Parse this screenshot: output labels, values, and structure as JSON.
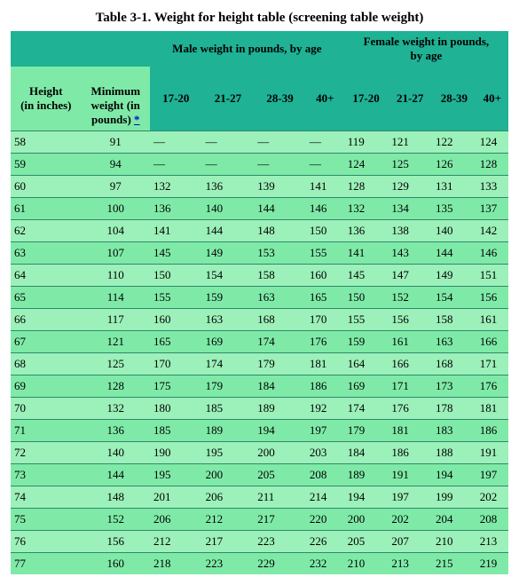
{
  "title": "Table 3-1. Weight for height table (screening table weight)",
  "headers": {
    "male_group": "Male weight in pounds, by age",
    "female_group": "Female weight in pounds,\nby age",
    "height": "Height\n(in inches)",
    "minweight_pre": "Minimum\nweight (in\npounds) ",
    "minweight_link": "*",
    "ages": [
      "17-20",
      "21-27",
      "28-39",
      "40+",
      "17-20",
      "21-27",
      "28-39",
      "40+"
    ]
  },
  "rows": [
    {
      "h": "58",
      "m": "91",
      "v": [
        "—",
        "—",
        "—",
        "—",
        "119",
        "121",
        "122",
        "124"
      ]
    },
    {
      "h": "59",
      "m": "94",
      "v": [
        "—",
        "—",
        "—",
        "—",
        "124",
        "125",
        "126",
        "128"
      ]
    },
    {
      "h": "60",
      "m": "97",
      "v": [
        "132",
        "136",
        "139",
        "141",
        "128",
        "129",
        "131",
        "133"
      ]
    },
    {
      "h": "61",
      "m": "100",
      "v": [
        "136",
        "140",
        "144",
        "146",
        "132",
        "134",
        "135",
        "137"
      ]
    },
    {
      "h": "62",
      "m": "104",
      "v": [
        "141",
        "144",
        "148",
        "150",
        "136",
        "138",
        "140",
        "142"
      ]
    },
    {
      "h": "63",
      "m": "107",
      "v": [
        "145",
        "149",
        "153",
        "155",
        "141",
        "143",
        "144",
        "146"
      ]
    },
    {
      "h": "64",
      "m": "110",
      "v": [
        "150",
        "154",
        "158",
        "160",
        "145",
        "147",
        "149",
        "151"
      ]
    },
    {
      "h": "65",
      "m": "114",
      "v": [
        "155",
        "159",
        "163",
        "165",
        "150",
        "152",
        "154",
        "156"
      ]
    },
    {
      "h": "66",
      "m": "117",
      "v": [
        "160",
        "163",
        "168",
        "170",
        "155",
        "156",
        "158",
        "161"
      ]
    },
    {
      "h": "67",
      "m": "121",
      "v": [
        "165",
        "169",
        "174",
        "176",
        "159",
        "161",
        "163",
        "166"
      ]
    },
    {
      "h": "68",
      "m": "125",
      "v": [
        "170",
        "174",
        "179",
        "181",
        "164",
        "166",
        "168",
        "171"
      ]
    },
    {
      "h": "69",
      "m": "128",
      "v": [
        "175",
        "179",
        "184",
        "186",
        "169",
        "171",
        "173",
        "176"
      ]
    },
    {
      "h": "70",
      "m": "132",
      "v": [
        "180",
        "185",
        "189",
        "192",
        "174",
        "176",
        "178",
        "181"
      ]
    },
    {
      "h": "71",
      "m": "136",
      "v": [
        "185",
        "189",
        "194",
        "197",
        "179",
        "181",
        "183",
        "186"
      ]
    },
    {
      "h": "72",
      "m": "140",
      "v": [
        "190",
        "195",
        "200",
        "203",
        "184",
        "186",
        "188",
        "191"
      ]
    },
    {
      "h": "73",
      "m": "144",
      "v": [
        "195",
        "200",
        "205",
        "208",
        "189",
        "191",
        "194",
        "197"
      ]
    },
    {
      "h": "74",
      "m": "148",
      "v": [
        "201",
        "206",
        "211",
        "214",
        "194",
        "197",
        "199",
        "202"
      ]
    },
    {
      "h": "75",
      "m": "152",
      "v": [
        "206",
        "212",
        "217",
        "220",
        "200",
        "202",
        "204",
        "208"
      ]
    },
    {
      "h": "76",
      "m": "156",
      "v": [
        "212",
        "217",
        "223",
        "226",
        "205",
        "207",
        "210",
        "213"
      ]
    },
    {
      "h": "77",
      "m": "160",
      "v": [
        "218",
        "223",
        "229",
        "232",
        "210",
        "213",
        "215",
        "219"
      ]
    }
  ],
  "colors": {
    "header_bg": "#1fb295",
    "row_odd": "#9cf0b9",
    "row_even": "#7feaa8",
    "border": "#2d8a6a"
  }
}
